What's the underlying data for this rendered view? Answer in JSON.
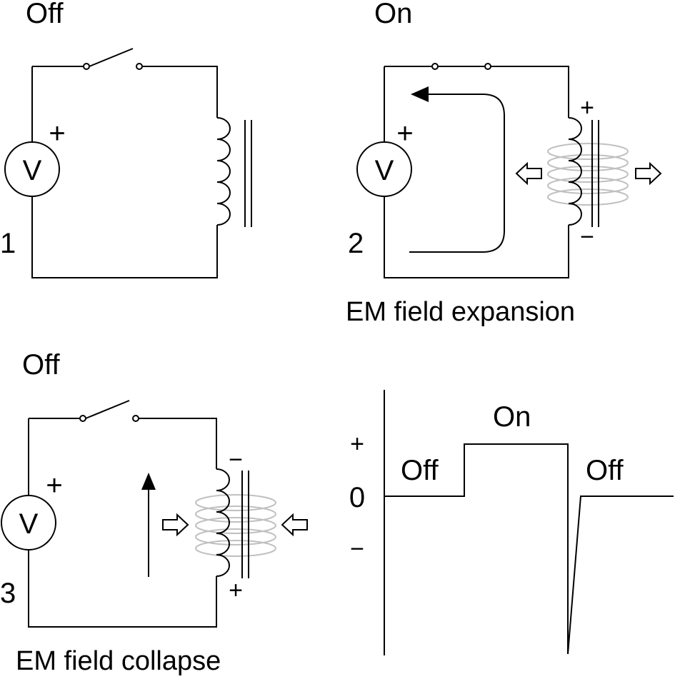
{
  "panels": [
    {
      "number": "1",
      "state": "Off",
      "source_symbol": "V",
      "polarity": "+",
      "caption": ""
    },
    {
      "number": "2",
      "state": "On",
      "source_symbol": "V",
      "polarity": "+",
      "coil_top_sign": "+",
      "coil_bottom_sign": "−",
      "caption": "EM field expansion"
    },
    {
      "number": "3",
      "state": "Off",
      "source_symbol": "V",
      "polarity": "+",
      "coil_top_sign": "−",
      "coil_bottom_sign": "+",
      "caption": "EM field collapse"
    }
  ],
  "graph": {
    "y_tick_labels": [
      "+",
      "0",
      "−"
    ],
    "segment_labels": [
      "Off",
      "On",
      "Off"
    ]
  }
}
